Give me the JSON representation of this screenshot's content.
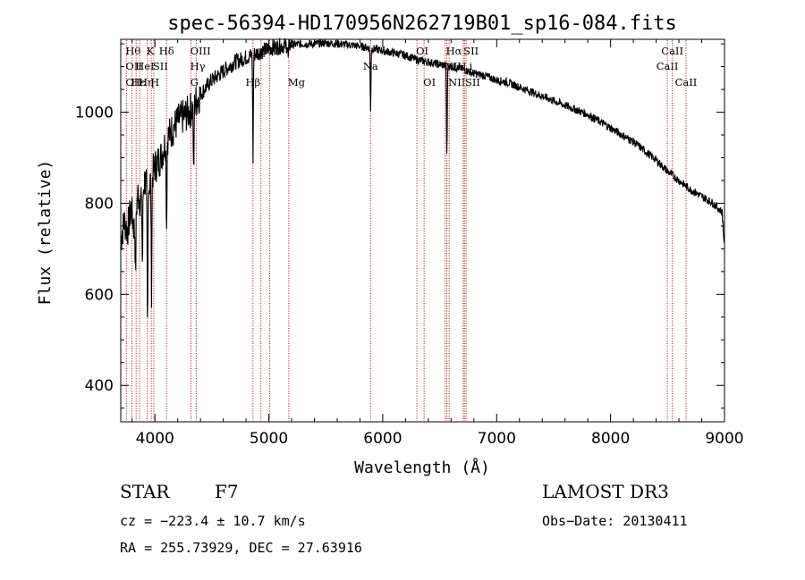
{
  "chart_data": {
    "type": "line",
    "title": "spec-56394-HD170956N262719B01_sp16-084.fits",
    "xlabel": "Wavelength (Å)",
    "ylabel": "Flux (relative)",
    "xlim": [
      3700,
      9000
    ],
    "ylim": [
      320,
      1160
    ],
    "xticks": [
      4000,
      5000,
      6000,
      7000,
      8000,
      9000
    ],
    "yticks": [
      400,
      600,
      800,
      1000
    ],
    "series": [
      {
        "name": "flux",
        "x": [
          3700,
          3730,
          3760,
          3790,
          3820,
          3850,
          3880,
          3910,
          3940,
          3970,
          4000,
          4050,
          4100,
          4150,
          4200,
          4250,
          4300,
          4350,
          4400,
          4500,
          4600,
          4700,
          4800,
          4900,
          5000,
          5100,
          5200,
          5300,
          5400,
          5500,
          5600,
          5700,
          5800,
          5900,
          6000,
          6100,
          6200,
          6300,
          6400,
          6500,
          6600,
          6700,
          6800,
          6900,
          7000,
          7100,
          7200,
          7300,
          7400,
          7500,
          7600,
          7700,
          7800,
          7900,
          8000,
          8100,
          8200,
          8300,
          8400,
          8500,
          8600,
          8700,
          8800,
          8900,
          8980,
          9000
        ],
        "values": [
          720,
          760,
          740,
          790,
          740,
          820,
          800,
          850,
          830,
          860,
          880,
          900,
          940,
          960,
          980,
          990,
          1000,
          1020,
          1040,
          1070,
          1090,
          1110,
          1120,
          1130,
          1140,
          1145,
          1148,
          1150,
          1150,
          1152,
          1150,
          1148,
          1145,
          1140,
          1135,
          1130,
          1125,
          1115,
          1110,
          1105,
          1100,
          1095,
          1085,
          1080,
          1070,
          1065,
          1055,
          1045,
          1035,
          1025,
          1015,
          1005,
          995,
          980,
          965,
          950,
          935,
          915,
          895,
          870,
          850,
          830,
          815,
          800,
          780,
          700
        ]
      }
    ],
    "absorption_lines": [
      {
        "x": 3830,
        "depth": 120
      },
      {
        "x": 3890,
        "depth": 150
      },
      {
        "x": 3935,
        "depth": 320
      },
      {
        "x": 3970,
        "depth": 250
      },
      {
        "x": 4102,
        "depth": 190
      },
      {
        "x": 4340,
        "depth": 170
      },
      {
        "x": 4861,
        "depth": 230
      },
      {
        "x": 5170,
        "depth": 30
      },
      {
        "x": 5893,
        "depth": 140
      },
      {
        "x": 6563,
        "depth": 200
      }
    ],
    "line_markers": [
      {
        "x": 3750,
        "labels": [
          "Hθ",
          "OII",
          "OII"
        ],
        "rows": [
          0,
          1,
          2
        ],
        "anchor": "start"
      },
      {
        "x": 3798,
        "labels": [
          "Hε"
        ],
        "rows": [
          2
        ],
        "anchor": "start"
      },
      {
        "x": 3835,
        "labels": [
          "HeI"
        ],
        "rows": [
          1
        ],
        "anchor": "start"
      },
      {
        "x": 3865,
        "labels": [
          "Hη"
        ],
        "rows": [
          2
        ],
        "anchor": "start"
      },
      {
        "x": 3934,
        "labels": [
          "K"
        ],
        "rows": [
          0
        ],
        "anchor": "start"
      },
      {
        "x": 3968,
        "labels": [
          "H"
        ],
        "rows": [
          2
        ],
        "anchor": "start"
      },
      {
        "x": 3990,
        "labels": [
          "SII"
        ],
        "rows": [
          1
        ],
        "anchor": "start"
      },
      {
        "x": 4102,
        "labels": [
          "Hδ"
        ],
        "rows": [
          0
        ],
        "anchor": "middle"
      },
      {
        "x": 4317,
        "labels": [
          "OIII",
          "Hγ",
          "G"
        ],
        "rows": [
          0,
          1,
          2
        ],
        "anchor": "start"
      },
      {
        "x": 4363,
        "labels": [],
        "rows": [],
        "anchor": "start"
      },
      {
        "x": 4861,
        "labels": [
          "Hβ"
        ],
        "rows": [
          2
        ],
        "anchor": "middle"
      },
      {
        "x": 4931,
        "labels": [
          "OIII"
        ],
        "rows": [
          0
        ],
        "anchor": "start"
      },
      {
        "x": 5007,
        "labels": [],
        "rows": [],
        "anchor": "start"
      },
      {
        "x": 5175,
        "labels": [
          "Mg"
        ],
        "rows": [
          2
        ],
        "anchor": "start"
      },
      {
        "x": 5893,
        "labels": [
          "Na"
        ],
        "rows": [
          1
        ],
        "anchor": "middle"
      },
      {
        "x": 6300,
        "labels": [
          "OI"
        ],
        "rows": [
          0
        ],
        "anchor": "start"
      },
      {
        "x": 6363,
        "labels": [
          "OI"
        ],
        "rows": [
          2
        ],
        "anchor": "start"
      },
      {
        "x": 6548,
        "labels": [
          "NII"
        ],
        "rows": [
          1
        ],
        "anchor": "start"
      },
      {
        "x": 6563,
        "labels": [
          "Hα"
        ],
        "rows": [
          0
        ],
        "anchor": "start"
      },
      {
        "x": 6583,
        "labels": [
          "NII"
        ],
        "rows": [
          2
        ],
        "anchor": "start"
      },
      {
        "x": 6707,
        "labels": [
          "Li"
        ],
        "rows": [
          1
        ],
        "anchor": "start"
      },
      {
        "x": 6717,
        "labels": [
          "SII"
        ],
        "rows": [
          0
        ],
        "anchor": "start"
      },
      {
        "x": 6731,
        "labels": [
          "SII"
        ],
        "rows": [
          2
        ],
        "anchor": "start"
      },
      {
        "x": 8498,
        "labels": [
          "CaII"
        ],
        "rows": [
          1
        ],
        "anchor": "middle"
      },
      {
        "x": 8542,
        "labels": [
          "CaII"
        ],
        "rows": [
          0
        ],
        "anchor": "middle"
      },
      {
        "x": 8662,
        "labels": [
          "CaII"
        ],
        "rows": [
          2
        ],
        "anchor": "middle"
      }
    ]
  },
  "info": {
    "class_label": "STAR",
    "subclass_label": "F7",
    "survey": "LAMOST DR3",
    "cz": "cz = −223.4 ± 10.7 km/s",
    "obs_date": "Obs−Date: 20130411",
    "coords": "RA = 255.73929, DEC =  27.63916"
  },
  "colors": {
    "axis": "#000000",
    "spectrum": "#000000",
    "marker": "#b22222"
  }
}
